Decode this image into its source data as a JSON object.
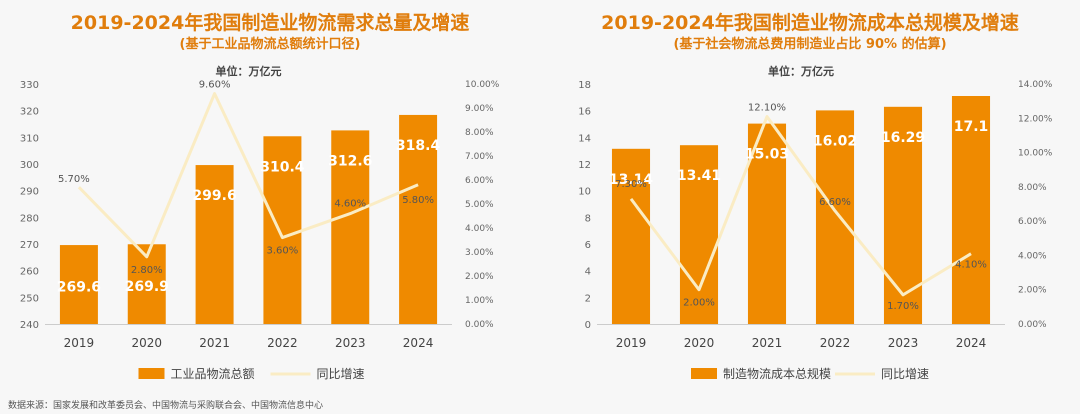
{
  "colors": {
    "bar": "#ef8a00",
    "line": "#faecc4",
    "title": "#e07d0c",
    "axis_text": "#666666",
    "grid": "#dddddd"
  },
  "source_note": "数据来源：国家发展和改革委员会、中国物流与采购联合会、中国物流信息中心",
  "chart_data": [
    {
      "type": "bar",
      "title": "2019-2024年我国制造业物流需求总量及增速",
      "subtitle": "(基于工业品物流总额统计口径)",
      "unit_label": "单位：万亿元",
      "categories": [
        "2019",
        "2020",
        "2021",
        "2022",
        "2023",
        "2024"
      ],
      "series": [
        {
          "name": "工业品物流总额",
          "type": "bar",
          "axis": "left",
          "values": [
            269.6,
            269.9,
            299.6,
            310.4,
            312.6,
            318.4
          ],
          "labels": [
            "269.6",
            "269.9",
            "299.6",
            "310.4",
            "312.6",
            "318.4"
          ]
        },
        {
          "name": "同比增速",
          "type": "line",
          "axis": "right",
          "values": [
            5.7,
            2.8,
            9.6,
            3.6,
            4.6,
            5.8
          ],
          "labels": [
            "5.70%",
            "2.80%",
            "9.60%",
            "3.60%",
            "4.60%",
            "5.80%"
          ]
        }
      ],
      "ylim_left": [
        240,
        330
      ],
      "yticks_left": [
        "240",
        "250",
        "260",
        "270",
        "280",
        "290",
        "300",
        "310",
        "320",
        "330"
      ],
      "ylim_right": [
        0,
        10
      ],
      "yticks_right": [
        "0.00%",
        "1.00%",
        "2.00%",
        "3.00%",
        "4.00%",
        "5.00%",
        "6.00%",
        "7.00%",
        "8.00%",
        "9.00%",
        "10.00%"
      ],
      "legend_position": "bottom",
      "grid": false
    },
    {
      "type": "bar",
      "title": "2019-2024年我国制造业物流成本总规模及增速",
      "subtitle": "(基于社会物流总费用制造业占比 90% 的估算)",
      "unit_label": "单位：万亿元",
      "categories": [
        "2019",
        "2020",
        "2021",
        "2022",
        "2023",
        "2024"
      ],
      "series": [
        {
          "name": "制造物流成本总规模",
          "type": "bar",
          "axis": "left",
          "values": [
            13.14,
            13.41,
            15.03,
            16.02,
            16.29,
            17.1
          ],
          "labels": [
            "13.14",
            "13.41",
            "15.03",
            "16.02",
            "16.29",
            "17.1"
          ]
        },
        {
          "name": "同比增速",
          "type": "line",
          "axis": "right",
          "values": [
            7.3,
            2.0,
            12.1,
            6.6,
            1.7,
            4.1
          ],
          "labels": [
            "7.30%",
            "2.00%",
            "12.10%",
            "6.60%",
            "1.70%",
            "4.10%"
          ]
        }
      ],
      "ylim_left": [
        0,
        18
      ],
      "yticks_left": [
        "0",
        "2",
        "4",
        "6",
        "8",
        "10",
        "12",
        "14",
        "16",
        "18"
      ],
      "ylim_right": [
        0,
        14
      ],
      "yticks_right": [
        "0.00%",
        "2.00%",
        "4.00%",
        "6.00%",
        "8.00%",
        "10.00%",
        "12.00%",
        "14.00%"
      ],
      "legend_position": "bottom",
      "grid": false
    }
  ]
}
